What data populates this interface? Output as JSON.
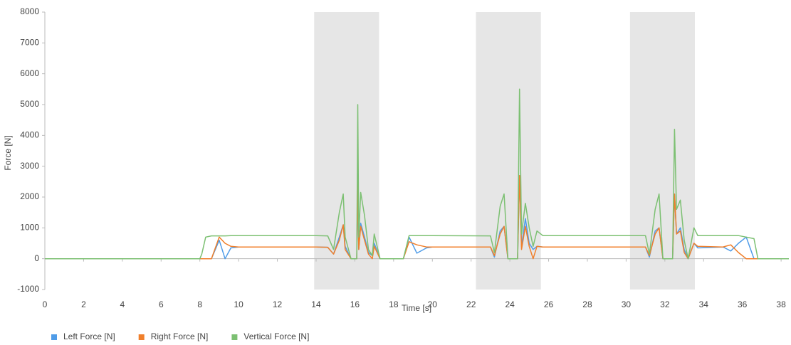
{
  "chart_data": {
    "type": "line",
    "x_label": "Time [s]",
    "y_label": "Force [N]",
    "xlim": [
      0,
      38.4
    ],
    "ylim": [
      -1000,
      8000
    ],
    "xticks": [
      0,
      2,
      4,
      6,
      8,
      10,
      12,
      14,
      16,
      18,
      20,
      22,
      24,
      26,
      28,
      30,
      32,
      34,
      36,
      38
    ],
    "yticks": [
      -1000,
      0,
      1000,
      2000,
      3000,
      4000,
      5000,
      6000,
      7000,
      8000
    ],
    "shaded_regions": [
      [
        13.9,
        17.25
      ],
      [
        22.25,
        25.6
      ],
      [
        30.2,
        33.55
      ]
    ],
    "shade_color": "#e6e6e6",
    "legend": "bottom-left",
    "x": [
      0,
      8.0,
      8.1,
      8.3,
      8.6,
      9.0,
      9.3,
      9.6,
      10,
      14.0,
      14.6,
      14.9,
      15.2,
      15.4,
      15.5,
      15.8,
      16.1,
      16.15,
      16.2,
      16.3,
      16.5,
      16.7,
      16.9,
      17.0,
      17.3,
      18.5,
      18.8,
      19.2,
      19.7,
      20,
      23.0,
      23.2,
      23.5,
      23.7,
      23.9,
      24.4,
      24.5,
      24.6,
      24.8,
      25.0,
      25.2,
      25.4,
      25.7,
      31.0,
      31.2,
      31.5,
      31.7,
      31.9,
      32.4,
      32.5,
      32.6,
      32.8,
      33.0,
      33.2,
      33.5,
      33.7,
      35.0,
      35.4,
      35.8,
      36.2,
      36.6,
      36.8,
      38.4
    ],
    "series": [
      {
        "name": "Left Force [N]",
        "color": "#4f9ce8",
        "values": [
          0,
          0,
          0,
          0,
          0,
          600,
          0,
          350,
          380,
          380,
          370,
          150,
          700,
          1100,
          400,
          0,
          0,
          2500,
          300,
          1150,
          700,
          200,
          100,
          500,
          0,
          0,
          700,
          180,
          350,
          380,
          380,
          50,
          900,
          1050,
          0,
          0,
          2700,
          400,
          1300,
          500,
          300,
          400,
          380,
          380,
          50,
          900,
          1000,
          0,
          0,
          2100,
          800,
          1000,
          300,
          0,
          500,
          350,
          380,
          250,
          500,
          700,
          0,
          0,
          0
        ]
      },
      {
        "name": "Right Force [N]",
        "color": "#f07f2b",
        "values": [
          0,
          0,
          0,
          0,
          0,
          700,
          500,
          400,
          380,
          380,
          370,
          150,
          600,
          1100,
          300,
          0,
          0,
          2500,
          300,
          1050,
          600,
          150,
          0,
          400,
          0,
          0,
          550,
          450,
          380,
          380,
          380,
          100,
          800,
          1050,
          0,
          0,
          2700,
          300,
          1050,
          400,
          0,
          400,
          380,
          380,
          100,
          800,
          1000,
          0,
          0,
          2100,
          800,
          900,
          200,
          0,
          500,
          400,
          380,
          450,
          200,
          0,
          0,
          0,
          0
        ]
      },
      {
        "name": "Vertical Force [N]",
        "color": "#7cc072",
        "values": [
          0,
          0,
          150,
          700,
          740,
          740,
          740,
          750,
          750,
          750,
          740,
          300,
          1500,
          2100,
          700,
          0,
          0,
          5000,
          700,
          2150,
          1400,
          300,
          100,
          800,
          0,
          0,
          750,
          750,
          750,
          750,
          740,
          200,
          1700,
          2100,
          0,
          0,
          5500,
          800,
          1800,
          1000,
          400,
          900,
          750,
          750,
          150,
          1600,
          2100,
          0,
          0,
          4200,
          1600,
          1900,
          600,
          0,
          1000,
          750,
          750,
          750,
          750,
          700,
          650,
          0,
          0
        ]
      }
    ]
  }
}
